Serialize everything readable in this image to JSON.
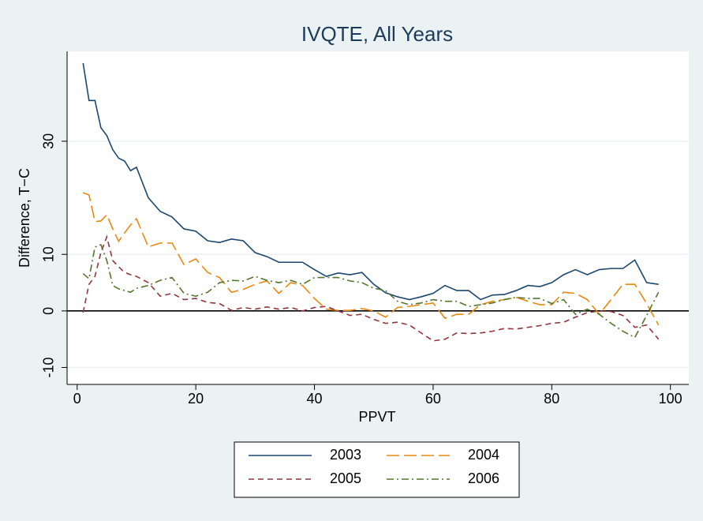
{
  "chart_data": {
    "type": "line",
    "title": "IVQTE, All Years",
    "x_label": "PPVT",
    "y_label": "Difference, T−C",
    "x": [
      1,
      2,
      3,
      4,
      5,
      6,
      7,
      8,
      9,
      10,
      12,
      14,
      16,
      18,
      20,
      22,
      24,
      26,
      28,
      30,
      32,
      34,
      36,
      38,
      40,
      42,
      44,
      46,
      48,
      50,
      52,
      54,
      56,
      58,
      60,
      62,
      64,
      66,
      68,
      70,
      72,
      74,
      76,
      78,
      80,
      82,
      84,
      86,
      88,
      90,
      92,
      94,
      96,
      98
    ],
    "series": [
      {
        "name": "2003",
        "color": "#1a476f",
        "dash": "none",
        "values": [
          43.8,
          37.2,
          37.2,
          32.4,
          31,
          28.5,
          27,
          26.5,
          24.8,
          25.4,
          20,
          17.6,
          16.6,
          14.5,
          14.1,
          12.4,
          12.1,
          12.7,
          12.4,
          10.3,
          9.6,
          8.6,
          8.6,
          8.6,
          7.3,
          6.1,
          6.7,
          6.4,
          6.8,
          4.7,
          3.2,
          2.5,
          2,
          2.5,
          3.1,
          4.5,
          3.6,
          3.6,
          2,
          2.8,
          2.9,
          3.6,
          4.5,
          4.3,
          5,
          6.4,
          7.3,
          6.4,
          7.3,
          7.5,
          7.5,
          9,
          5,
          4.7
        ]
      },
      {
        "name": "2004",
        "color": "#e8890f",
        "dash": "16,6",
        "values": [
          20.9,
          20.5,
          15.8,
          15.9,
          17,
          14.5,
          12.3,
          13.8,
          15.2,
          16.3,
          11.3,
          12,
          12,
          8.2,
          9.2,
          6.8,
          5.9,
          3.3,
          3.8,
          4.7,
          5.3,
          3.1,
          5,
          4.5,
          2.2,
          0.3,
          0.1,
          0.1,
          0.4,
          0,
          -1.1,
          0.6,
          0.8,
          1.1,
          1.4,
          -1.3,
          -0.6,
          -0.6,
          1.1,
          1.7,
          2,
          2.4,
          1.7,
          1.1,
          1.1,
          3.3,
          3.1,
          2,
          -0.6,
          2,
          4.7,
          4.7,
          1.3,
          -2.5
        ]
      },
      {
        "name": "2005",
        "color": "#90353b",
        "dash": "7,5",
        "values": [
          -0.3,
          4.7,
          6.1,
          10.3,
          13.1,
          8.9,
          7.8,
          6.8,
          6.4,
          6.1,
          5,
          2.6,
          3.1,
          2,
          2.2,
          1.5,
          1.3,
          0.1,
          0.6,
          0.3,
          0.7,
          0.3,
          0.6,
          0,
          0.6,
          0.8,
          0,
          -0.8,
          -0.6,
          -1.5,
          -2.2,
          -2,
          -2.5,
          -3.9,
          -5.3,
          -5,
          -3.9,
          -4,
          -3.9,
          -3.6,
          -3.1,
          -3.2,
          -2.9,
          -2.6,
          -2.2,
          -2,
          -1.1,
          -0.3,
          0,
          -0.1,
          -0.8,
          -2.9,
          -2.5,
          -5
        ]
      },
      {
        "name": "2006",
        "color": "#55752f",
        "dash": "9,4,2,4",
        "values": [
          6.6,
          5.7,
          11.3,
          11.7,
          8.9,
          4.5,
          3.9,
          3.6,
          3.3,
          4,
          4.5,
          5.4,
          5.9,
          3.1,
          2.6,
          3.3,
          5,
          5.4,
          5.3,
          6.1,
          5.4,
          5,
          5.4,
          4.7,
          5.9,
          5.9,
          5.9,
          5.3,
          5,
          4,
          3.6,
          1.7,
          1.1,
          1.4,
          2,
          1.7,
          1.7,
          0.8,
          1.1,
          1.4,
          2,
          2.4,
          2.2,
          2.2,
          1.3,
          2,
          -0.6,
          0.3,
          -0.6,
          -2.2,
          -3.6,
          -4.7,
          -0.8,
          3.3
        ]
      }
    ],
    "xlim": [
      -1.7,
      103.1
    ],
    "ylim": [
      -13,
      45.9
    ],
    "xticks": [
      0,
      20,
      40,
      60,
      80,
      100
    ],
    "yticks": [
      -10,
      0,
      10,
      30
    ],
    "grid": true,
    "hline": 0
  }
}
